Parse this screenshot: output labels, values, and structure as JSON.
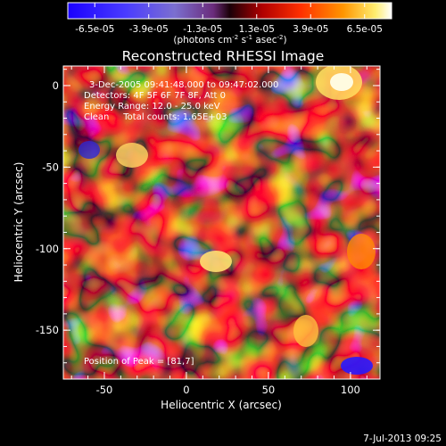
{
  "colorbar": {
    "tick_labels": [
      "-6.5e-05",
      "-3.9e-05",
      "-1.3e-05",
      "1.3e-05",
      "3.9e-05",
      "6.5e-05"
    ],
    "unit_parts": [
      "(photons cm",
      "-2",
      " s",
      "-1",
      " asec",
      "-2",
      ")"
    ]
  },
  "plot": {
    "title": "Reconstructed RHESSI Image",
    "xlabel": "Heliocentric X (arcsec)",
    "ylabel": "Heliocentric Y (arcsec)",
    "x_ticks": [
      "-50",
      "0",
      "50",
      "100"
    ],
    "y_ticks": [
      "0",
      "-50",
      "-100",
      "-150"
    ],
    "xlim": [
      -75,
      118
    ],
    "ylim": [
      -180,
      12
    ]
  },
  "annotations": [
    "3-Dec-2005 09:41:48.000 to 09:47:02.000",
    "Detectors: 4F 5F 6F 7F 8F, Att 0",
    "Energy Range: 12.0 - 25.0 keV",
    "Clean     Total counts: 1.65E+03"
  ],
  "peak_label": "Position of Peak = [81,7]",
  "footer_timestamp": "7-Jul-2013 09:25",
  "colors": {
    "background": "#000000",
    "text": "#ffffff"
  }
}
